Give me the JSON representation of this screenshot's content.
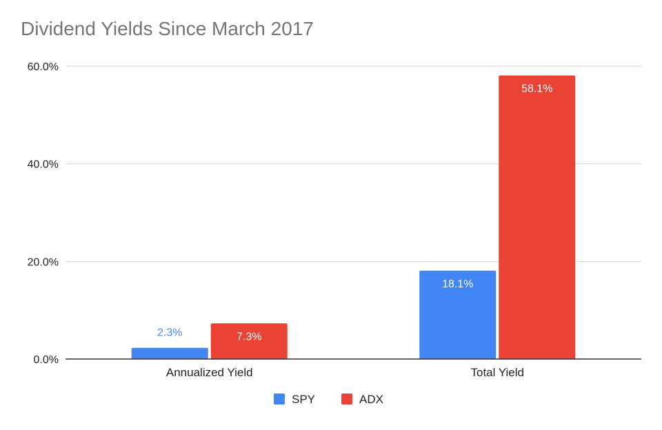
{
  "chart_data": {
    "type": "bar",
    "title": "Dividend Yields Since March 2017",
    "xlabel": "",
    "ylabel": "",
    "categories": [
      "Annualized Yield",
      "Total Yield"
    ],
    "series": [
      {
        "name": "SPY",
        "values": [
          2.3,
          18.1
        ],
        "labels": [
          "2.3%",
          "18.1%"
        ],
        "color": "#4285f4"
      },
      {
        "name": "ADX",
        "values": [
          7.3,
          58.1
        ],
        "labels": [
          "7.3%",
          "58.1%"
        ],
        "color": "#ea4335"
      }
    ],
    "ylim": [
      0,
      60
    ],
    "yticks": [
      0,
      20,
      40,
      60
    ],
    "ytick_labels": [
      "0.0%",
      "20.0%",
      "40.0%",
      "60.0%"
    ],
    "grid": true,
    "legend_position": "bottom"
  }
}
